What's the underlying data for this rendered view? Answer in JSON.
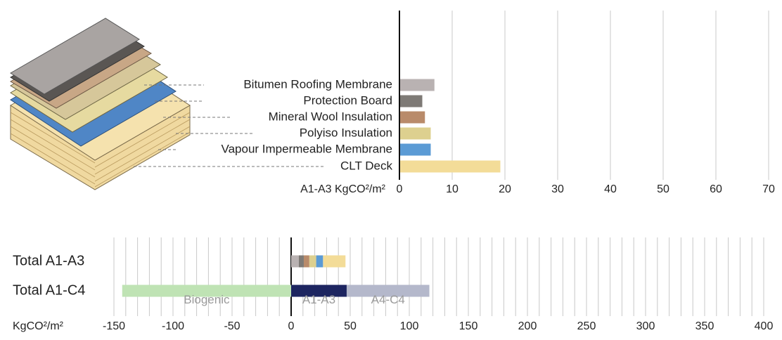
{
  "chart_data": [
    {
      "type": "bar",
      "orientation": "horizontal",
      "xlabel": "A1-A3 KgCO²/m²",
      "categories": [
        "Bitumen Roofing Membrane",
        "Protection Board",
        "Mineral Wool Insulation",
        "Polyiso Insulation",
        "Vapour Impermeable Membrane",
        "CLT Deck"
      ],
      "values": [
        6.5,
        4.2,
        4.7,
        5.8,
        5.8,
        19
      ],
      "colors": [
        "#b9b2b2",
        "#7e7a76",
        "#b98b6a",
        "#ddd08f",
        "#5b9bd5",
        "#f3dc98"
      ],
      "xlim": [
        0,
        70
      ],
      "xticks": [
        0,
        10,
        20,
        30,
        40,
        50,
        60,
        70
      ],
      "grid": true
    },
    {
      "type": "bar",
      "orientation": "horizontal",
      "stacked": true,
      "xlabel": "KgCO²/m²",
      "categories": [
        "Total A1-A3",
        "Total A1-C4"
      ],
      "series": [
        {
          "color": "#b9b2b2",
          "values": [
            6.5,
            null
          ]
        },
        {
          "color": "#7e7a76",
          "values": [
            4.2,
            null
          ]
        },
        {
          "color": "#b98b6a",
          "values": [
            4.7,
            null
          ]
        },
        {
          "color": "#ddd08f",
          "values": [
            5.8,
            null
          ]
        },
        {
          "color": "#5b9bd5",
          "values": [
            5.8,
            null
          ]
        },
        {
          "color": "#f3dc98",
          "values": [
            19,
            null
          ]
        },
        {
          "name": "Biogenic",
          "color": "#bfe3b4",
          "values": [
            null,
            -143
          ]
        },
        {
          "name": "A1-A3",
          "color": "#1d2560",
          "values": [
            null,
            47
          ]
        },
        {
          "name": "A4-C4",
          "color": "#b4b8cb",
          "values": [
            null,
            70
          ]
        }
      ],
      "xlim": [
        -150,
        400
      ],
      "xticks": [
        -150,
        -100,
        -50,
        0,
        50,
        100,
        150,
        200,
        250,
        300,
        350,
        400
      ],
      "grid": true,
      "grid_step": 10
    }
  ]
}
